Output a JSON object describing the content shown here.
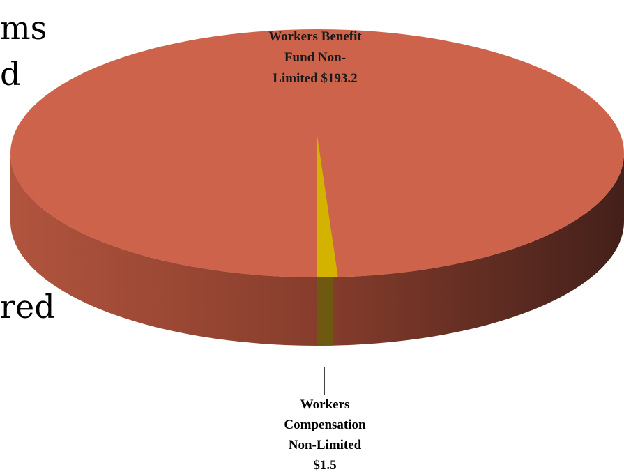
{
  "background_text": [
    "ms",
    "d",
    "red"
  ],
  "chart_data": {
    "type": "pie",
    "title": "",
    "style": "3d",
    "units": "$",
    "slices": [
      {
        "label_lines": [
          "Workers Benefit",
          "Fund Non-",
          "Limited  $193.2"
        ],
        "value": 193.2,
        "color": "#CC634A"
      },
      {
        "label_lines": [
          "Workers",
          "Compensation",
          "Non-Limited",
          "$1.5"
        ],
        "value": 1.5,
        "color": "#D4B200"
      }
    ],
    "label_colors": [
      "#1a1a1a",
      "#000000"
    ]
  }
}
